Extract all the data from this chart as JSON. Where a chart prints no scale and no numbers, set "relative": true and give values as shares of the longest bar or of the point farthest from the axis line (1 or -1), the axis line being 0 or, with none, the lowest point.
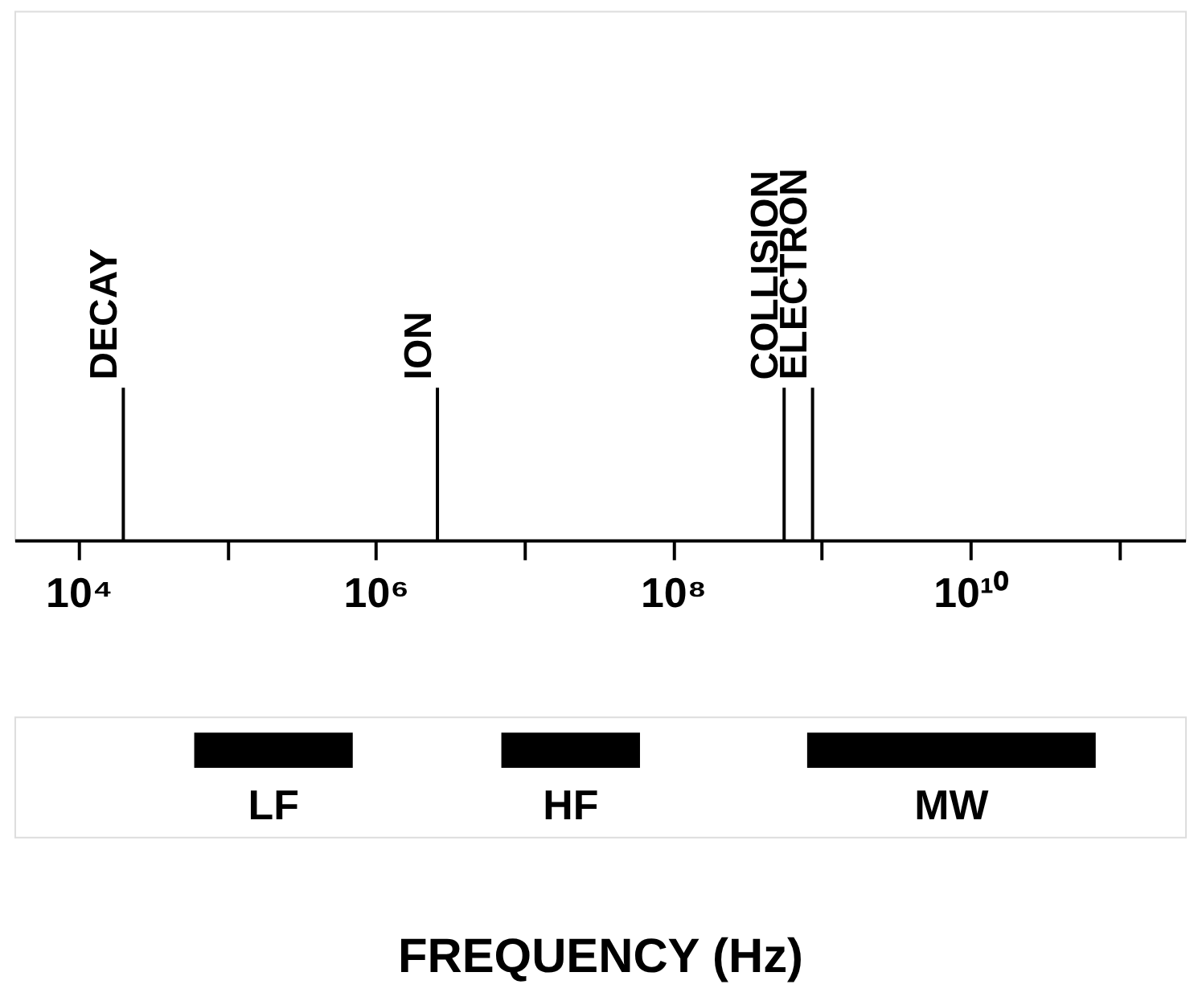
{
  "chart_data": [
    {
      "type": "bar",
      "log": "x",
      "relative": true,
      "x": [
        20000,
        2600000,
        560000000,
        870000000
      ],
      "values": [
        1,
        1,
        1,
        1
      ],
      "color": "#000000",
      "annotations": [
        {
          "text": "DECAY",
          "x": 20000,
          "y": 1
        },
        {
          "text": "ION",
          "x": 2600000,
          "y": 1
        },
        {
          "text": "COLLISION",
          "x": 560000000,
          "y": 1
        },
        {
          "text": "ELECTRON",
          "x": 870000000,
          "y": 1
        }
      ],
      "xlim": [
        3700,
        280000000000
      ],
      "xticks": [
        {
          "value": 10000,
          "label": "10⁴"
        },
        {
          "value": 100000,
          "label": null
        },
        {
          "value": 1000000,
          "label": "10⁶"
        },
        {
          "value": 10000000,
          "label": null
        },
        {
          "value": 100000000,
          "label": "10⁸"
        },
        {
          "value": 1000000000,
          "label": null
        },
        {
          "value": 10000000000,
          "label": "10¹⁰"
        },
        {
          "value": 100000000000,
          "label": null
        }
      ]
    },
    {
      "type": "bar",
      "orientation": "horizontal",
      "log": "x",
      "xlabel": "FREQUENCY  (Hz)",
      "xlim": [
        3700,
        280000000000
      ],
      "categories": [
        null
      ],
      "series": [
        {
          "name": "LF",
          "color": "#000000",
          "base": [
            60000
          ],
          "values": [
            640000
          ]
        },
        {
          "name": "HF",
          "color": "#000000",
          "base": [
            7000000
          ],
          "values": [
            53000000
          ]
        },
        {
          "name": "MW",
          "color": "#000000",
          "base": [
            800000000
          ],
          "values": [
            69200000000
          ]
        }
      ]
    }
  ]
}
